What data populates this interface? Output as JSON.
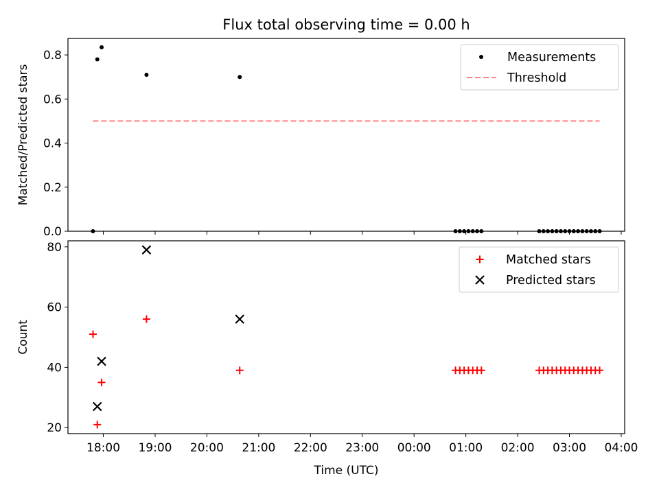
{
  "chart_data": [
    {
      "type": "scatter",
      "title": "Flux total observing time = 0.00 h",
      "xlabel": "",
      "ylabel": "Matched/Predicted stars",
      "ylim": [
        0,
        0.875
      ],
      "yticks": [
        "0.0",
        "0.2",
        "0.4",
        "0.6",
        "0.8"
      ],
      "ytick_values": [
        0.0,
        0.2,
        0.4,
        0.6,
        0.8
      ],
      "grid": false,
      "legend_position": "top-right",
      "series": [
        {
          "name": "Measurements",
          "marker": "dot",
          "color": "#000000",
          "x": [
            "17:48",
            "17:53",
            "17:58",
            "18:50",
            "20:38",
            "00:48",
            "00:53",
            "00:58",
            "01:03",
            "01:08",
            "01:13",
            "01:18",
            "02:25",
            "02:30",
            "02:35",
            "02:40",
            "02:45",
            "02:50",
            "02:55",
            "03:00",
            "03:05",
            "03:10",
            "03:15",
            "03:20",
            "03:25",
            "03:30",
            "03:35"
          ],
          "y": [
            0.0,
            0.78,
            0.835,
            0.71,
            0.7,
            0.0,
            0.0,
            0.0,
            0.0,
            0.0,
            0.0,
            0.0,
            0.0,
            0.0,
            0.0,
            0.0,
            0.0,
            0.0,
            0.0,
            0.0,
            0.0,
            0.0,
            0.0,
            0.0,
            0.0,
            0.0,
            0.0
          ]
        },
        {
          "name": "Threshold",
          "marker": "dashed-line",
          "color": "#ff7f7f",
          "x": [
            "17:48",
            "03:35"
          ],
          "y": [
            0.5,
            0.5
          ]
        }
      ]
    },
    {
      "type": "scatter",
      "title": "",
      "xlabel": "Time (UTC)",
      "ylabel": "Count",
      "ylim": [
        18,
        82
      ],
      "yticks": [
        "20",
        "40",
        "60",
        "80"
      ],
      "ytick_values": [
        20,
        40,
        60,
        80
      ],
      "xlim": [
        "17:19",
        "04:04"
      ],
      "xticks": [
        "18:00",
        "19:00",
        "20:00",
        "21:00",
        "22:00",
        "23:00",
        "00:00",
        "01:00",
        "02:00",
        "03:00",
        "04:00"
      ],
      "grid": false,
      "legend_position": "top-right",
      "series": [
        {
          "name": "Matched stars",
          "marker": "plus",
          "color": "#ff0000",
          "x": [
            "17:48",
            "17:53",
            "17:58",
            "18:50",
            "20:38",
            "00:48",
            "00:53",
            "00:58",
            "01:03",
            "01:08",
            "01:13",
            "01:18",
            "02:25",
            "02:30",
            "02:35",
            "02:40",
            "02:45",
            "02:50",
            "02:55",
            "03:00",
            "03:05",
            "03:10",
            "03:15",
            "03:20",
            "03:25",
            "03:30",
            "03:35"
          ],
          "y": [
            51,
            21,
            35,
            56,
            39,
            39,
            39,
            39,
            39,
            39,
            39,
            39,
            39,
            39,
            39,
            39,
            39,
            39,
            39,
            39,
            39,
            39,
            39,
            39,
            39,
            39,
            39
          ]
        },
        {
          "name": "Predicted stars",
          "marker": "x",
          "color": "#000000",
          "x": [
            "17:53",
            "17:58",
            "18:50",
            "20:38"
          ],
          "y": [
            27,
            42,
            79,
            56
          ]
        }
      ]
    }
  ]
}
